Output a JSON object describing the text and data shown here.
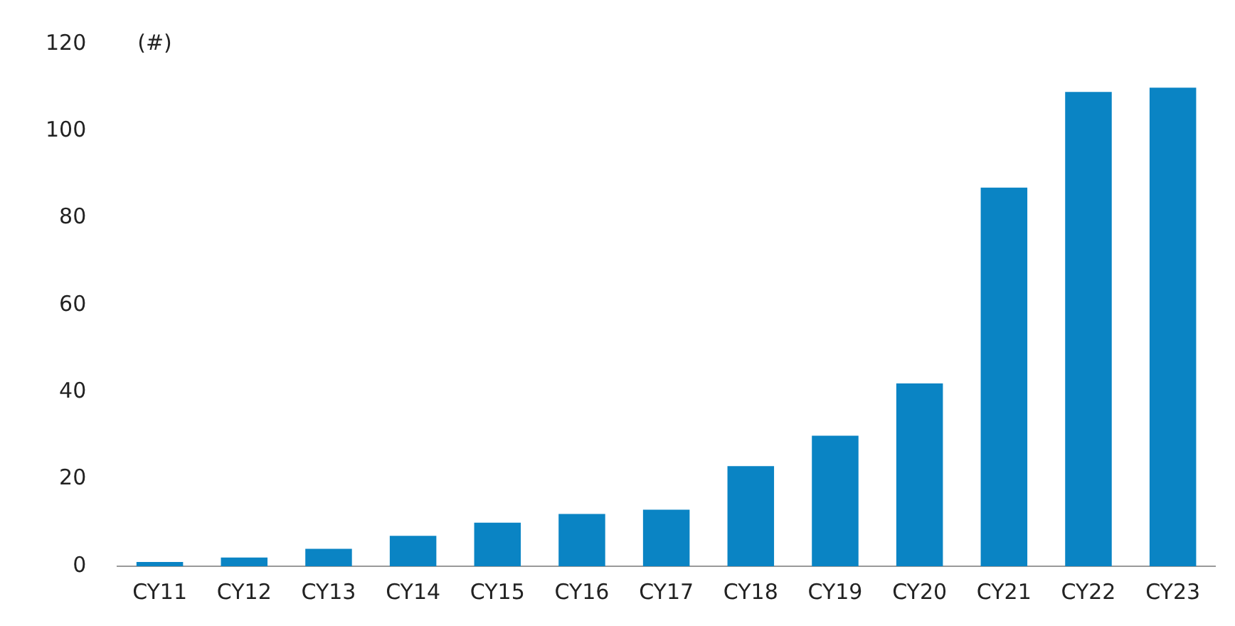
{
  "chart_data": {
    "type": "bar",
    "ylabel": "(#)",
    "categories": [
      "CY11",
      "CY12",
      "CY13",
      "CY14",
      "CY15",
      "CY16",
      "CY17",
      "CY18",
      "CY19",
      "CY20",
      "CY21",
      "CY22",
      "CY23"
    ],
    "values": [
      1,
      2,
      4,
      7,
      10,
      12,
      13,
      23,
      30,
      42,
      87,
      109,
      110
    ],
    "color": "#0a84c4",
    "ylim": [
      0,
      120
    ],
    "yticks": [
      0,
      20,
      40,
      60,
      80,
      100,
      120
    ],
    "grid": false,
    "legend": false
  }
}
